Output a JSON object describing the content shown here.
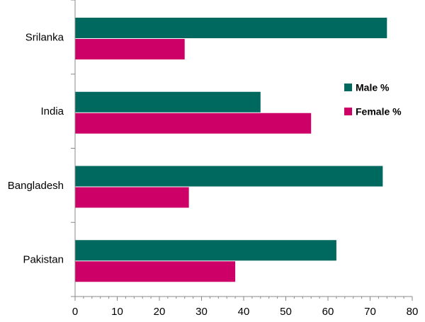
{
  "chart_data": {
    "type": "bar",
    "orientation": "horizontal",
    "categories": [
      "Srilanka",
      "India",
      "Bangladesh",
      "Pakistan"
    ],
    "series": [
      {
        "name": "Male %",
        "values": [
          74,
          44,
          73,
          62
        ],
        "color": "#00695f"
      },
      {
        "name": "Female %",
        "values": [
          26,
          56,
          27,
          38
        ],
        "color": "#cc0066"
      }
    ],
    "xlim": [
      0,
      80
    ],
    "x_ticks": [
      0,
      10,
      20,
      30,
      40,
      50,
      60,
      70,
      80
    ],
    "title": "",
    "xlabel": "",
    "ylabel": "",
    "grid": false,
    "legend_position": "right"
  }
}
